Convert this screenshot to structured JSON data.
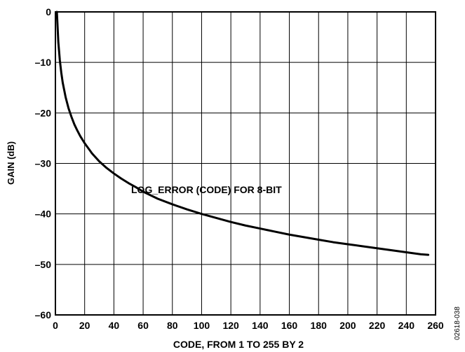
{
  "chart_data": {
    "type": "line",
    "title": "",
    "xlabel": "CODE, FROM 1 TO 255 BY 2",
    "ylabel": "GAIN (dB)",
    "xlim": [
      0,
      260
    ],
    "ylim": [
      -60,
      0
    ],
    "xticks": [
      0,
      20,
      40,
      60,
      80,
      100,
      120,
      140,
      160,
      180,
      200,
      220,
      240,
      260
    ],
    "yticks": [
      0,
      -10,
      -20,
      -30,
      -40,
      -50,
      -60
    ],
    "xtick_labels": [
      "0",
      "20",
      "40",
      "60",
      "80",
      "100",
      "120",
      "140",
      "160",
      "180",
      "200",
      "220",
      "240",
      "260"
    ],
    "ytick_labels": [
      "0",
      "–10",
      "–20",
      "–30",
      "–40",
      "–50",
      "–60"
    ],
    "grid": true,
    "legend": "none",
    "annotations": [
      "LOG_ERROR (CODE) FOR 8-BIT"
    ],
    "side_label": "02618-038",
    "series": [
      {
        "color": "#000000",
        "x": [
          1,
          2,
          3,
          4,
          5,
          7,
          9,
          11,
          13,
          15,
          17,
          20,
          25,
          30,
          35,
          40,
          45,
          50,
          55,
          60,
          70,
          80,
          90,
          100,
          110,
          120,
          130,
          140,
          150,
          160,
          170,
          180,
          190,
          200,
          210,
          220,
          230,
          240,
          250,
          255
        ],
        "y": [
          0,
          -6.0,
          -9.5,
          -12.0,
          -14.0,
          -16.9,
          -19.1,
          -20.8,
          -22.3,
          -23.5,
          -24.6,
          -26.0,
          -28.0,
          -29.6,
          -30.9,
          -32.0,
          -33.0,
          -33.9,
          -34.7,
          -35.6,
          -37.0,
          -38.1,
          -39.1,
          -40.0,
          -40.8,
          -41.6,
          -42.3,
          -42.9,
          -43.5,
          -44.1,
          -44.6,
          -45.1,
          -45.6,
          -46.0,
          -46.4,
          -46.8,
          -47.2,
          -47.6,
          -48.0,
          -48.1
        ]
      }
    ]
  }
}
